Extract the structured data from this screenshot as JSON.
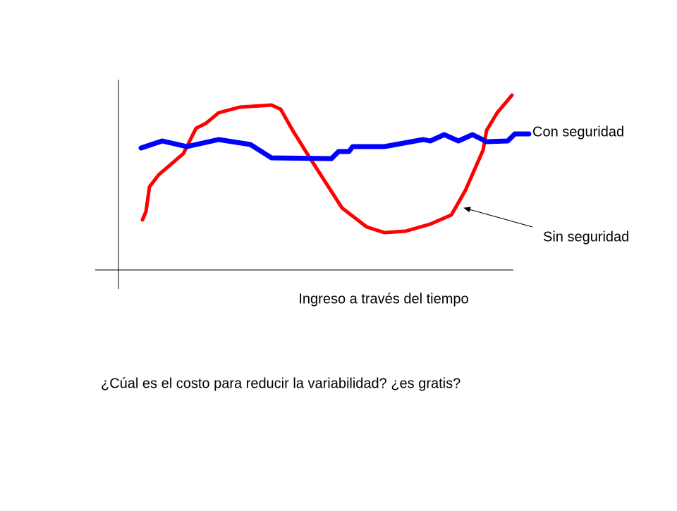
{
  "labels": {
    "with_insurance": "Con seguridad",
    "without_insurance": "Sin seguridad",
    "x_axis": "Ingreso a través del tiempo"
  },
  "question": "¿Cúal es el costo para reducir la variabilidad? ¿es gratis?"
}
